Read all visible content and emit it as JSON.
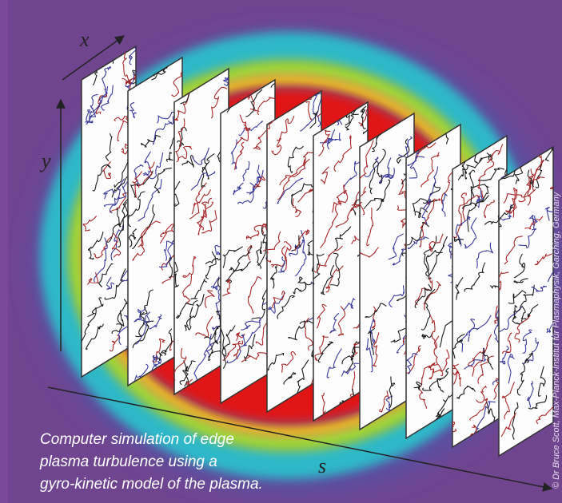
{
  "labels": {
    "x": "x",
    "y": "y",
    "s": "s"
  },
  "caption": [
    "Computer simulation of edge",
    "plasma turbulence using a",
    "gyro-kinetic model of the plasma."
  ],
  "credit": "© Dr Bruce Scott, Max-Planck-Institut für Plasmaphysik, Garching, Germany"
}
